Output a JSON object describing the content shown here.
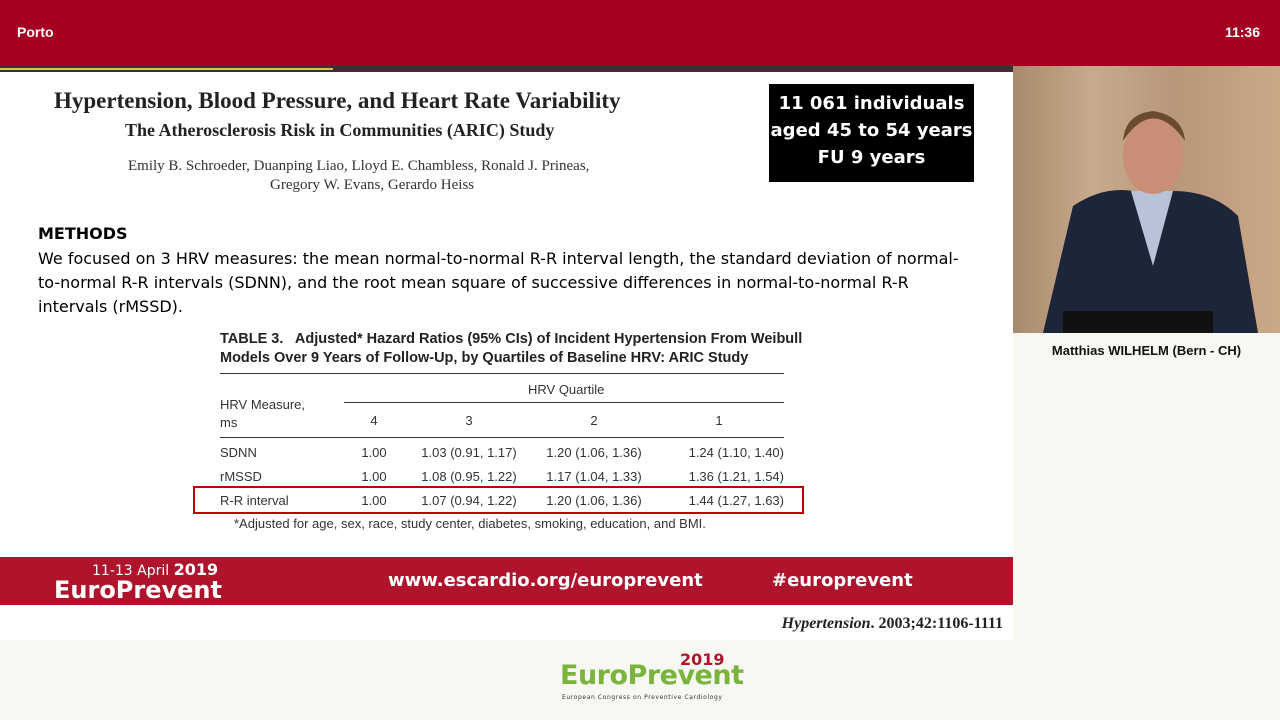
{
  "header": {
    "location": "Porto",
    "time": "11:36"
  },
  "slide": {
    "paper_title": "Hypertension, Blood Pressure, and Heart Rate Variability",
    "paper_subtitle": "The Atherosclerosis Risk in Communities (ARIC) Study",
    "authors": [
      "Emily B. Schroeder, Duanping Liao, Lloyd E. Chambless, Ronald J. Prineas,",
      "Gregory W. Evans, Gerardo Heiss"
    ],
    "info_box": [
      "11 061 individuals",
      "aged 45 to 54 years",
      "FU 9 years"
    ],
    "methods_heading": "METHODS",
    "methods_text": "We focused on 3 HRV measures: the mean normal-to-normal R-R interval length, the standard deviation of normal-to-normal R-R intervals (SDNN), and the root mean square of successive differences in normal-to-normal R-R intervals (rMSSD).",
    "table": {
      "title": [
        "TABLE 3.   Adjusted* Hazard Ratios (95% CIs) of Incident Hypertension From Weibull",
        "Models Over 9 Years of Follow-Up, by Quartiles of Baseline HRV: ARIC Study"
      ],
      "measure_header": [
        "HRV Measure,",
        "ms"
      ],
      "group_header": "HRV Quartile",
      "columns": [
        "4",
        "3",
        "2",
        "1"
      ],
      "rows": [
        [
          "SDNN",
          "1.00",
          "1.03 (0.91, 1.17)",
          "1.20 (1.06, 1.36)",
          "1.24 (1.10, 1.40)"
        ],
        [
          "rMSSD",
          "1.00",
          "1.08 (0.95, 1.22)",
          "1.17 (1.04, 1.33)",
          "1.36 (1.21, 1.54)"
        ],
        [
          "R-R interval",
          "1.00",
          "1.07 (0.94, 1.22)",
          "1.20 (1.06, 1.36)",
          "1.44 (1.27, 1.63)"
        ]
      ],
      "footnote": "*Adjusted for age, sex, race, study center, diabetes, smoking, education, and BMI."
    },
    "banner": {
      "dates": "11-13 April",
      "year": "2019",
      "brand": "EuroPrevent",
      "url": "www.escardio.org/europrevent",
      "hashtag": "#europrevent"
    },
    "citation": {
      "journal": "Hypertension",
      "ref": ". 2003;42:1106-1111"
    }
  },
  "speaker": {
    "name": "Matthias WILHELM (Bern - CH)"
  },
  "logo": {
    "year": "2019",
    "brand": "EuroPrevent",
    "tagline": "European Congress on Preventive Cardiology"
  }
}
